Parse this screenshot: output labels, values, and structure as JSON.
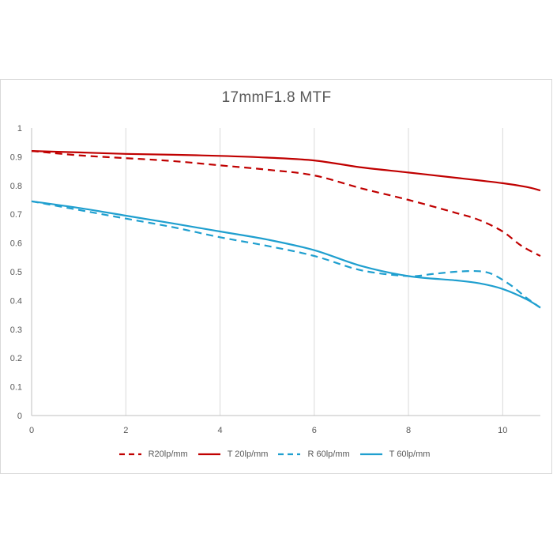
{
  "chart_data": {
    "type": "line",
    "title": "17mmF1.8  MTF",
    "xlabel": "",
    "ylabel": "",
    "xlim": [
      0,
      10.8
    ],
    "ylim": [
      0,
      1
    ],
    "x_ticks": [
      "0",
      "2",
      "4",
      "6",
      "8",
      "10"
    ],
    "y_ticks": [
      "0",
      "0.1",
      "0.2",
      "0.3",
      "0.4",
      "0.5",
      "0.6",
      "0.7",
      "0.8",
      "0.9",
      "1"
    ],
    "grid": "vertical",
    "legend_position": "bottom",
    "series": [
      {
        "name": "R20lp/mm",
        "color": "#c00000",
        "dash": "dashed",
        "points": [
          [
            0,
            0.92
          ],
          [
            1,
            0.905
          ],
          [
            2,
            0.895
          ],
          [
            3,
            0.885
          ],
          [
            4,
            0.87
          ],
          [
            5,
            0.855
          ],
          [
            6,
            0.835
          ],
          [
            7,
            0.79
          ],
          [
            8,
            0.75
          ],
          [
            9,
            0.705
          ],
          [
            9.5,
            0.68
          ],
          [
            10,
            0.64
          ],
          [
            10.4,
            0.59
          ],
          [
            10.8,
            0.555
          ]
        ]
      },
      {
        "name": "T 20lp/mm",
        "color": "#c00000",
        "dash": "solid",
        "points": [
          [
            0,
            0.92
          ],
          [
            1,
            0.915
          ],
          [
            2,
            0.91
          ],
          [
            3,
            0.907
          ],
          [
            4,
            0.903
          ],
          [
            5,
            0.897
          ],
          [
            6,
            0.887
          ],
          [
            7,
            0.863
          ],
          [
            8,
            0.845
          ],
          [
            9,
            0.827
          ],
          [
            10,
            0.808
          ],
          [
            10.5,
            0.795
          ],
          [
            10.8,
            0.783
          ]
        ]
      },
      {
        "name": "R 60lp/mm",
        "color": "#1f9fcf",
        "dash": "dashed",
        "points": [
          [
            0,
            0.745
          ],
          [
            1,
            0.715
          ],
          [
            2,
            0.685
          ],
          [
            3,
            0.655
          ],
          [
            4,
            0.62
          ],
          [
            5,
            0.59
          ],
          [
            6,
            0.555
          ],
          [
            7,
            0.505
          ],
          [
            8,
            0.485
          ],
          [
            8.5,
            0.492
          ],
          [
            9,
            0.5
          ],
          [
            9.5,
            0.502
          ],
          [
            9.8,
            0.49
          ],
          [
            10.2,
            0.45
          ],
          [
            10.5,
            0.41
          ],
          [
            10.8,
            0.375
          ]
        ]
      },
      {
        "name": "T 60lp/mm",
        "color": "#1f9fcf",
        "dash": "solid",
        "points": [
          [
            0,
            0.745
          ],
          [
            1,
            0.722
          ],
          [
            2,
            0.695
          ],
          [
            3,
            0.668
          ],
          [
            4,
            0.64
          ],
          [
            5,
            0.612
          ],
          [
            6,
            0.575
          ],
          [
            7,
            0.52
          ],
          [
            8,
            0.485
          ],
          [
            9,
            0.47
          ],
          [
            9.5,
            0.46
          ],
          [
            10,
            0.44
          ],
          [
            10.5,
            0.405
          ],
          [
            10.8,
            0.375
          ]
        ]
      }
    ]
  }
}
